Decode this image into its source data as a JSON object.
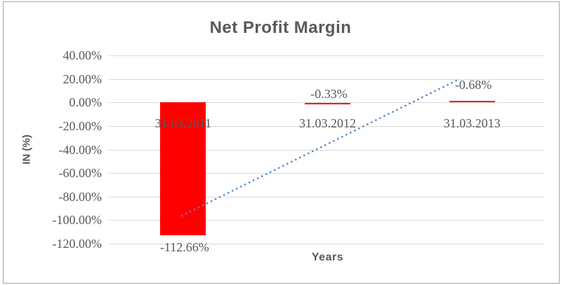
{
  "window": {
    "background": "#ffffff",
    "border_color": "#a6a6a6"
  },
  "chart_data": {
    "type": "bar",
    "title": "Net Profit Margin",
    "xlabel": "Years",
    "ylabel": "IN (%)",
    "categories": [
      "31.03.2011",
      "31.03.2012",
      "31.03.2013"
    ],
    "values": [
      -112.66,
      -0.33,
      -0.68
    ],
    "data_labels": [
      "-112.66%",
      "-0.33%",
      "-0.68%"
    ],
    "ytick_labels": [
      "40.00%",
      "20.00%",
      "0.00%",
      "-20.00%",
      "-40.00%",
      "-60.00%",
      "-80.00%",
      "-100.00%",
      "-120.00%"
    ],
    "ylim": [
      -120,
      40
    ],
    "ytick_step": 20,
    "grid": true,
    "legend": false,
    "bar_color": "#ff0000",
    "gridline_color": "#d9d9d9",
    "text_color": "#595959",
    "trendline": {
      "style": "dotted",
      "color": "#4e86c8",
      "description": "linear trendline rising left to right",
      "start_pct": -96.5,
      "end_pct": 19.0
    }
  }
}
